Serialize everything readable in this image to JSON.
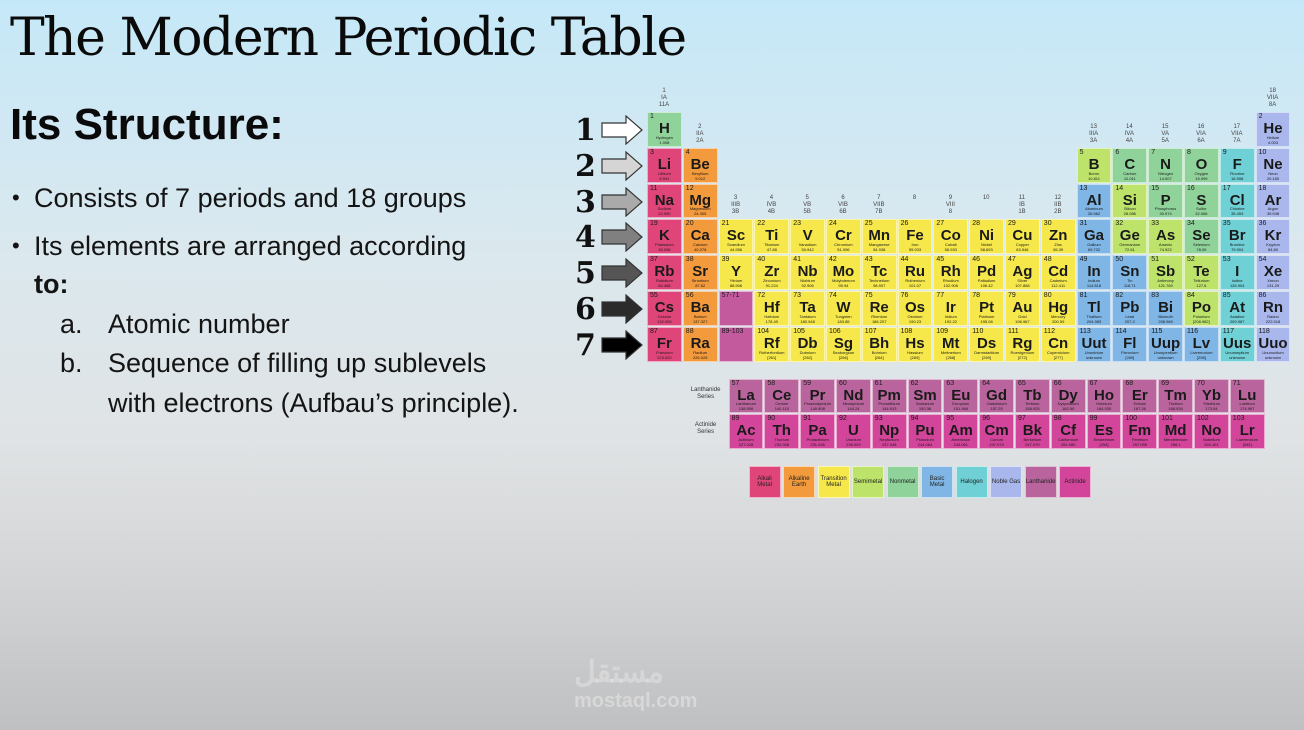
{
  "title": "The Modern Periodic Table",
  "subtitle": "Its Structure:",
  "bullets": {
    "b1": "Consists of 7 periods and 18 groups",
    "b2_line1": "Its elements are arranged according",
    "b2_line2": "to:",
    "a_label": "a.",
    "a_text": "Atomic number",
    "b_label": "b.",
    "b_text_line1": "Sequence of filling up sublevels",
    "b_text_line2": "with electrons (Aufbau’s principle)."
  },
  "period_numbers": [
    "1",
    "2",
    "3",
    "4",
    "5",
    "6",
    "7"
  ],
  "series_labels": {
    "lanthanide": "Lanthanide Series",
    "actinide": "Actinide Series"
  },
  "placeholders": {
    "p6": "57-71",
    "p7": "89-103"
  },
  "group_headers": [
    {
      "g": 1,
      "lines": [
        "1",
        "IA",
        "11A"
      ]
    },
    {
      "g": 2,
      "lines": [
        "2",
        "IIA",
        "2A"
      ]
    },
    {
      "g": 3,
      "lines": [
        "3",
        "IIIB",
        "3B"
      ]
    },
    {
      "g": 4,
      "lines": [
        "4",
        "IVB",
        "4B"
      ]
    },
    {
      "g": 5,
      "lines": [
        "5",
        "VB",
        "5B"
      ]
    },
    {
      "g": 6,
      "lines": [
        "6",
        "VIB",
        "6B"
      ]
    },
    {
      "g": 7,
      "lines": [
        "7",
        "VIIB",
        "7B"
      ]
    },
    {
      "g": 8,
      "lines": [
        "8",
        "",
        ""
      ]
    },
    {
      "g": 9,
      "lines": [
        "9",
        "VIII",
        "8"
      ]
    },
    {
      "g": 10,
      "lines": [
        "10",
        "",
        ""
      ]
    },
    {
      "g": 11,
      "lines": [
        "11",
        "IB",
        "1B"
      ]
    },
    {
      "g": 12,
      "lines": [
        "12",
        "IIB",
        "2B"
      ]
    },
    {
      "g": 13,
      "lines": [
        "13",
        "IIIA",
        "3A"
      ]
    },
    {
      "g": 14,
      "lines": [
        "14",
        "IVA",
        "4A"
      ]
    },
    {
      "g": 15,
      "lines": [
        "15",
        "VA",
        "5A"
      ]
    },
    {
      "g": 16,
      "lines": [
        "16",
        "VIA",
        "6A"
      ]
    },
    {
      "g": 17,
      "lines": [
        "17",
        "VIIA",
        "7A"
      ]
    },
    {
      "g": 18,
      "lines": [
        "18",
        "VIIA",
        "8A"
      ]
    }
  ],
  "colors": {
    "alkali": "#e0457a",
    "alkaline": "#f39a3c",
    "transition": "#f6e84a",
    "semimetal": "#bde36a",
    "nonmetal": "#8fd39a",
    "basic": "#7fb6e6",
    "halogen": "#6fd0d6",
    "noble": "#a9b7ec",
    "lanthanide": "#b9649c",
    "actinide": "#d3459a",
    "hydrogen": "#8fd39a",
    "placeholder": "#c35a9e"
  },
  "legend": [
    {
      "label": "Alkali Metal",
      "cat": "alkali"
    },
    {
      "label": "Alkaline Earth",
      "cat": "alkaline"
    },
    {
      "label": "Transition Metal",
      "cat": "transition"
    },
    {
      "label": "Semimetal",
      "cat": "semimetal"
    },
    {
      "label": "Nonmetal",
      "cat": "nonmetal"
    },
    {
      "label": "Basic Metal",
      "cat": "basic"
    },
    {
      "label": "Halogen",
      "cat": "halogen"
    },
    {
      "label": "Noble Gas",
      "cat": "noble"
    },
    {
      "label": "Lanthanide",
      "cat": "lanthanide"
    },
    {
      "label": "Actinide",
      "cat": "actinide"
    }
  ],
  "elements": [
    {
      "n": 1,
      "s": "H",
      "name": "Hydrogen",
      "m": "1.008",
      "p": 1,
      "g": 1,
      "c": "hydrogen"
    },
    {
      "n": 2,
      "s": "He",
      "name": "Helium",
      "m": "4.003",
      "p": 1,
      "g": 18,
      "c": "noble"
    },
    {
      "n": 3,
      "s": "Li",
      "name": "Lithium",
      "m": "6.941",
      "p": 2,
      "g": 1,
      "c": "alkali"
    },
    {
      "n": 4,
      "s": "Be",
      "name": "Beryllium",
      "m": "9.012",
      "p": 2,
      "g": 2,
      "c": "alkaline"
    },
    {
      "n": 5,
      "s": "B",
      "name": "Boron",
      "m": "10.811",
      "p": 2,
      "g": 13,
      "c": "semimetal"
    },
    {
      "n": 6,
      "s": "C",
      "name": "Carbon",
      "m": "12.011",
      "p": 2,
      "g": 14,
      "c": "nonmetal"
    },
    {
      "n": 7,
      "s": "N",
      "name": "Nitrogen",
      "m": "14.007",
      "p": 2,
      "g": 15,
      "c": "nonmetal"
    },
    {
      "n": 8,
      "s": "O",
      "name": "Oxygen",
      "m": "15.999",
      "p": 2,
      "g": 16,
      "c": "nonmetal"
    },
    {
      "n": 9,
      "s": "F",
      "name": "Fluorine",
      "m": "18.998",
      "p": 2,
      "g": 17,
      "c": "halogen"
    },
    {
      "n": 10,
      "s": "Ne",
      "name": "Neon",
      "m": "20.180",
      "p": 2,
      "g": 18,
      "c": "noble"
    },
    {
      "n": 11,
      "s": "Na",
      "name": "Sodium",
      "m": "22.990",
      "p": 3,
      "g": 1,
      "c": "alkali"
    },
    {
      "n": 12,
      "s": "Mg",
      "name": "Magnesium",
      "m": "24.305",
      "p": 3,
      "g": 2,
      "c": "alkaline"
    },
    {
      "n": 13,
      "s": "Al",
      "name": "Aluminum",
      "m": "26.982",
      "p": 3,
      "g": 13,
      "c": "basic"
    },
    {
      "n": 14,
      "s": "Si",
      "name": "Silicon",
      "m": "28.086",
      "p": 3,
      "g": 14,
      "c": "semimetal"
    },
    {
      "n": 15,
      "s": "P",
      "name": "Phosphorus",
      "m": "30.974",
      "p": 3,
      "g": 15,
      "c": "nonmetal"
    },
    {
      "n": 16,
      "s": "S",
      "name": "Sulfur",
      "m": "32.066",
      "p": 3,
      "g": 16,
      "c": "nonmetal"
    },
    {
      "n": 17,
      "s": "Cl",
      "name": "Chlorine",
      "m": "35.453",
      "p": 3,
      "g": 17,
      "c": "halogen"
    },
    {
      "n": 18,
      "s": "Ar",
      "name": "Argon",
      "m": "39.948",
      "p": 3,
      "g": 18,
      "c": "noble"
    },
    {
      "n": 19,
      "s": "K",
      "name": "Potassium",
      "m": "39.098",
      "p": 4,
      "g": 1,
      "c": "alkali"
    },
    {
      "n": 20,
      "s": "Ca",
      "name": "Calcium",
      "m": "40.078",
      "p": 4,
      "g": 2,
      "c": "alkaline"
    },
    {
      "n": 21,
      "s": "Sc",
      "name": "Scandium",
      "m": "44.956",
      "p": 4,
      "g": 3,
      "c": "transition"
    },
    {
      "n": 22,
      "s": "Ti",
      "name": "Titanium",
      "m": "47.88",
      "p": 4,
      "g": 4,
      "c": "transition"
    },
    {
      "n": 23,
      "s": "V",
      "name": "Vanadium",
      "m": "50.942",
      "p": 4,
      "g": 5,
      "c": "transition"
    },
    {
      "n": 24,
      "s": "Cr",
      "name": "Chromium",
      "m": "51.996",
      "p": 4,
      "g": 6,
      "c": "transition"
    },
    {
      "n": 25,
      "s": "Mn",
      "name": "Manganese",
      "m": "54.938",
      "p": 4,
      "g": 7,
      "c": "transition"
    },
    {
      "n": 26,
      "s": "Fe",
      "name": "Iron",
      "m": "55.933",
      "p": 4,
      "g": 8,
      "c": "transition"
    },
    {
      "n": 27,
      "s": "Co",
      "name": "Cobalt",
      "m": "58.933",
      "p": 4,
      "g": 9,
      "c": "transition"
    },
    {
      "n": 28,
      "s": "Ni",
      "name": "Nickel",
      "m": "58.693",
      "p": 4,
      "g": 10,
      "c": "transition"
    },
    {
      "n": 29,
      "s": "Cu",
      "name": "Copper",
      "m": "63.546",
      "p": 4,
      "g": 11,
      "c": "transition"
    },
    {
      "n": 30,
      "s": "Zn",
      "name": "Zinc",
      "m": "65.39",
      "p": 4,
      "g": 12,
      "c": "transition"
    },
    {
      "n": 31,
      "s": "Ga",
      "name": "Gallium",
      "m": "69.732",
      "p": 4,
      "g": 13,
      "c": "basic"
    },
    {
      "n": 32,
      "s": "Ge",
      "name": "Germanium",
      "m": "72.61",
      "p": 4,
      "g": 14,
      "c": "semimetal"
    },
    {
      "n": 33,
      "s": "As",
      "name": "Arsenic",
      "m": "74.922",
      "p": 4,
      "g": 15,
      "c": "semimetal"
    },
    {
      "n": 34,
      "s": "Se",
      "name": "Selenium",
      "m": "78.09",
      "p": 4,
      "g": 16,
      "c": "nonmetal"
    },
    {
      "n": 35,
      "s": "Br",
      "name": "Bromine",
      "m": "79.904",
      "p": 4,
      "g": 17,
      "c": "halogen"
    },
    {
      "n": 36,
      "s": "Kr",
      "name": "Krypton",
      "m": "84.80",
      "p": 4,
      "g": 18,
      "c": "noble"
    },
    {
      "n": 37,
      "s": "Rb",
      "name": "Rubidium",
      "m": "84.468",
      "p": 5,
      "g": 1,
      "c": "alkali"
    },
    {
      "n": 38,
      "s": "Sr",
      "name": "Strontium",
      "m": "87.62",
      "p": 5,
      "g": 2,
      "c": "alkaline"
    },
    {
      "n": 39,
      "s": "Y",
      "name": "Yttrium",
      "m": "88.906",
      "p": 5,
      "g": 3,
      "c": "transition"
    },
    {
      "n": 40,
      "s": "Zr",
      "name": "Zirconium",
      "m": "91.224",
      "p": 5,
      "g": 4,
      "c": "transition"
    },
    {
      "n": 41,
      "s": "Nb",
      "name": "Niobium",
      "m": "92.906",
      "p": 5,
      "g": 5,
      "c": "transition"
    },
    {
      "n": 42,
      "s": "Mo",
      "name": "Molybdenum",
      "m": "95.94",
      "p": 5,
      "g": 6,
      "c": "transition"
    },
    {
      "n": 43,
      "s": "Tc",
      "name": "Technetium",
      "m": "98.907",
      "p": 5,
      "g": 7,
      "c": "transition"
    },
    {
      "n": 44,
      "s": "Ru",
      "name": "Ruthenium",
      "m": "101.07",
      "p": 5,
      "g": 8,
      "c": "transition"
    },
    {
      "n": 45,
      "s": "Rh",
      "name": "Rhodium",
      "m": "102.906",
      "p": 5,
      "g": 9,
      "c": "transition"
    },
    {
      "n": 46,
      "s": "Pd",
      "name": "Palladium",
      "m": "106.42",
      "p": 5,
      "g": 10,
      "c": "transition"
    },
    {
      "n": 47,
      "s": "Ag",
      "name": "Silver",
      "m": "107.868",
      "p": 5,
      "g": 11,
      "c": "transition"
    },
    {
      "n": 48,
      "s": "Cd",
      "name": "Cadmium",
      "m": "112.411",
      "p": 5,
      "g": 12,
      "c": "transition"
    },
    {
      "n": 49,
      "s": "In",
      "name": "Indium",
      "m": "114.818",
      "p": 5,
      "g": 13,
      "c": "basic"
    },
    {
      "n": 50,
      "s": "Sn",
      "name": "Tin",
      "m": "118.71",
      "p": 5,
      "g": 14,
      "c": "basic"
    },
    {
      "n": 51,
      "s": "Sb",
      "name": "Antimony",
      "m": "121.760",
      "p": 5,
      "g": 15,
      "c": "semimetal"
    },
    {
      "n": 52,
      "s": "Te",
      "name": "Tellurium",
      "m": "127.6",
      "p": 5,
      "g": 16,
      "c": "semimetal"
    },
    {
      "n": 53,
      "s": "I",
      "name": "Iodine",
      "m": "126.904",
      "p": 5,
      "g": 17,
      "c": "halogen"
    },
    {
      "n": 54,
      "s": "Xe",
      "name": "Xenon",
      "m": "131.29",
      "p": 5,
      "g": 18,
      "c": "noble"
    },
    {
      "n": 55,
      "s": "Cs",
      "name": "Cesium",
      "m": "132.905",
      "p": 6,
      "g": 1,
      "c": "alkali"
    },
    {
      "n": 56,
      "s": "Ba",
      "name": "Barium",
      "m": "137.327",
      "p": 6,
      "g": 2,
      "c": "alkaline"
    },
    {
      "n": 72,
      "s": "Hf",
      "name": "Hafnium",
      "m": "178.49",
      "p": 6,
      "g": 4,
      "c": "transition"
    },
    {
      "n": 73,
      "s": "Ta",
      "name": "Tantalum",
      "m": "180.948",
      "p": 6,
      "g": 5,
      "c": "transition"
    },
    {
      "n": 74,
      "s": "W",
      "name": "Tungsten",
      "m": "183.85",
      "p": 6,
      "g": 6,
      "c": "transition"
    },
    {
      "n": 75,
      "s": "Re",
      "name": "Rhenium",
      "m": "186.207",
      "p": 6,
      "g": 7,
      "c": "transition"
    },
    {
      "n": 76,
      "s": "Os",
      "name": "Osmium",
      "m": "190.23",
      "p": 6,
      "g": 8,
      "c": "transition"
    },
    {
      "n": 77,
      "s": "Ir",
      "name": "Iridium",
      "m": "192.22",
      "p": 6,
      "g": 9,
      "c": "transition"
    },
    {
      "n": 78,
      "s": "Pt",
      "name": "Platinum",
      "m": "195.08",
      "p": 6,
      "g": 10,
      "c": "transition"
    },
    {
      "n": 79,
      "s": "Au",
      "name": "Gold",
      "m": "196.967",
      "p": 6,
      "g": 11,
      "c": "transition"
    },
    {
      "n": 80,
      "s": "Hg",
      "name": "Mercury",
      "m": "200.59",
      "p": 6,
      "g": 12,
      "c": "transition"
    },
    {
      "n": 81,
      "s": "Tl",
      "name": "Thallium",
      "m": "204.383",
      "p": 6,
      "g": 13,
      "c": "basic"
    },
    {
      "n": 82,
      "s": "Pb",
      "name": "Lead",
      "m": "207.2",
      "p": 6,
      "g": 14,
      "c": "basic"
    },
    {
      "n": 83,
      "s": "Bi",
      "name": "Bismuth",
      "m": "208.980",
      "p": 6,
      "g": 15,
      "c": "basic"
    },
    {
      "n": 84,
      "s": "Po",
      "name": "Polonium",
      "m": "[208.982]",
      "p": 6,
      "g": 16,
      "c": "semimetal"
    },
    {
      "n": 85,
      "s": "At",
      "name": "Astatine",
      "m": "209.987",
      "p": 6,
      "g": 17,
      "c": "halogen"
    },
    {
      "n": 86,
      "s": "Rn",
      "name": "Radon",
      "m": "222.018",
      "p": 6,
      "g": 18,
      "c": "noble"
    },
    {
      "n": 87,
      "s": "Fr",
      "name": "Francium",
      "m": "223.020",
      "p": 7,
      "g": 1,
      "c": "alkali"
    },
    {
      "n": 88,
      "s": "Ra",
      "name": "Radium",
      "m": "226.025",
      "p": 7,
      "g": 2,
      "c": "alkaline"
    },
    {
      "n": 104,
      "s": "Rf",
      "name": "Rutherfordium",
      "m": "[261]",
      "p": 7,
      "g": 4,
      "c": "transition"
    },
    {
      "n": 105,
      "s": "Db",
      "name": "Dubnium",
      "m": "[262]",
      "p": 7,
      "g": 5,
      "c": "transition"
    },
    {
      "n": 106,
      "s": "Sg",
      "name": "Seaborgium",
      "m": "[266]",
      "p": 7,
      "g": 6,
      "c": "transition"
    },
    {
      "n": 107,
      "s": "Bh",
      "name": "Bohrium",
      "m": "[264]",
      "p": 7,
      "g": 7,
      "c": "transition"
    },
    {
      "n": 108,
      "s": "Hs",
      "name": "Hassium",
      "m": "[269]",
      "p": 7,
      "g": 8,
      "c": "transition"
    },
    {
      "n": 109,
      "s": "Mt",
      "name": "Meitnerium",
      "m": "[268]",
      "p": 7,
      "g": 9,
      "c": "transition"
    },
    {
      "n": 110,
      "s": "Ds",
      "name": "Darmstadtium",
      "m": "[269]",
      "p": 7,
      "g": 10,
      "c": "transition"
    },
    {
      "n": 111,
      "s": "Rg",
      "name": "Roentgenium",
      "m": "[272]",
      "p": 7,
      "g": 11,
      "c": "transition"
    },
    {
      "n": 112,
      "s": "Cn",
      "name": "Copernicium",
      "m": "[277]",
      "p": 7,
      "g": 12,
      "c": "transition"
    },
    {
      "n": 113,
      "s": "Uut",
      "name": "Ununtrium",
      "m": "unknown",
      "p": 7,
      "g": 13,
      "c": "basic"
    },
    {
      "n": 114,
      "s": "Fl",
      "name": "Flerovium",
      "m": "[289]",
      "p": 7,
      "g": 14,
      "c": "basic"
    },
    {
      "n": 115,
      "s": "Uup",
      "name": "Ununpentium",
      "m": "unknown",
      "p": 7,
      "g": 15,
      "c": "basic"
    },
    {
      "n": 116,
      "s": "Lv",
      "name": "Livermorium",
      "m": "[298]",
      "p": 7,
      "g": 16,
      "c": "basic"
    },
    {
      "n": 117,
      "s": "Uus",
      "name": "Ununseptium",
      "m": "unknown",
      "p": 7,
      "g": 17,
      "c": "halogen"
    },
    {
      "n": 118,
      "s": "Uuo",
      "name": "Ununoctium",
      "m": "unknown",
      "p": 7,
      "g": 18,
      "c": "noble"
    }
  ],
  "lanthanides": [
    {
      "n": 57,
      "s": "La",
      "name": "Lanthanum",
      "m": "138.906"
    },
    {
      "n": 58,
      "s": "Ce",
      "name": "Cerium",
      "m": "140.115"
    },
    {
      "n": 59,
      "s": "Pr",
      "name": "Praseodymium",
      "m": "140.908"
    },
    {
      "n": 60,
      "s": "Nd",
      "name": "Neodymium",
      "m": "144.24"
    },
    {
      "n": 61,
      "s": "Pm",
      "name": "Promethium",
      "m": "144.913"
    },
    {
      "n": 62,
      "s": "Sm",
      "name": "Samarium",
      "m": "150.36"
    },
    {
      "n": 63,
      "s": "Eu",
      "name": "Europium",
      "m": "151.966"
    },
    {
      "n": 64,
      "s": "Gd",
      "name": "Gadolinium",
      "m": "157.25"
    },
    {
      "n": 65,
      "s": "Tb",
      "name": "Terbium",
      "m": "158.925"
    },
    {
      "n": 66,
      "s": "Dy",
      "name": "Dysprosium",
      "m": "162.50"
    },
    {
      "n": 67,
      "s": "Ho",
      "name": "Holmium",
      "m": "164.930"
    },
    {
      "n": 68,
      "s": "Er",
      "name": "Erbium",
      "m": "167.26"
    },
    {
      "n": 69,
      "s": "Tm",
      "name": "Thulium",
      "m": "168.934"
    },
    {
      "n": 70,
      "s": "Yb",
      "name": "Ytterbium",
      "m": "173.04"
    },
    {
      "n": 71,
      "s": "Lu",
      "name": "Lutetium",
      "m": "174.967"
    }
  ],
  "actinides": [
    {
      "n": 89,
      "s": "Ac",
      "name": "Actinium",
      "m": "227.028"
    },
    {
      "n": 90,
      "s": "Th",
      "name": "Thorium",
      "m": "232.038"
    },
    {
      "n": 91,
      "s": "Pa",
      "name": "Protactinium",
      "m": "231.036"
    },
    {
      "n": 92,
      "s": "U",
      "name": "Uranium",
      "m": "238.029"
    },
    {
      "n": 93,
      "s": "Np",
      "name": "Neptunium",
      "m": "237.048"
    },
    {
      "n": 94,
      "s": "Pu",
      "name": "Plutonium",
      "m": "244.064"
    },
    {
      "n": 95,
      "s": "Am",
      "name": "Americium",
      "m": "243.061"
    },
    {
      "n": 96,
      "s": "Cm",
      "name": "Curium",
      "m": "247.070"
    },
    {
      "n": 97,
      "s": "Bk",
      "name": "Berkelium",
      "m": "247.070"
    },
    {
      "n": 98,
      "s": "Cf",
      "name": "Californium",
      "m": "251.080"
    },
    {
      "n": 99,
      "s": "Es",
      "name": "Einsteinium",
      "m": "[254]"
    },
    {
      "n": 100,
      "s": "Fm",
      "name": "Fermium",
      "m": "257.095"
    },
    {
      "n": 101,
      "s": "Md",
      "name": "Mendelevium",
      "m": "258.1"
    },
    {
      "n": 102,
      "s": "No",
      "name": "Nobelium",
      "m": "259.101"
    },
    {
      "n": 103,
      "s": "Lr",
      "name": "Lawrencium",
      "m": "[262]"
    }
  ],
  "watermark": {
    "arabic": "مستقل",
    "latin": "mostaql.com"
  }
}
